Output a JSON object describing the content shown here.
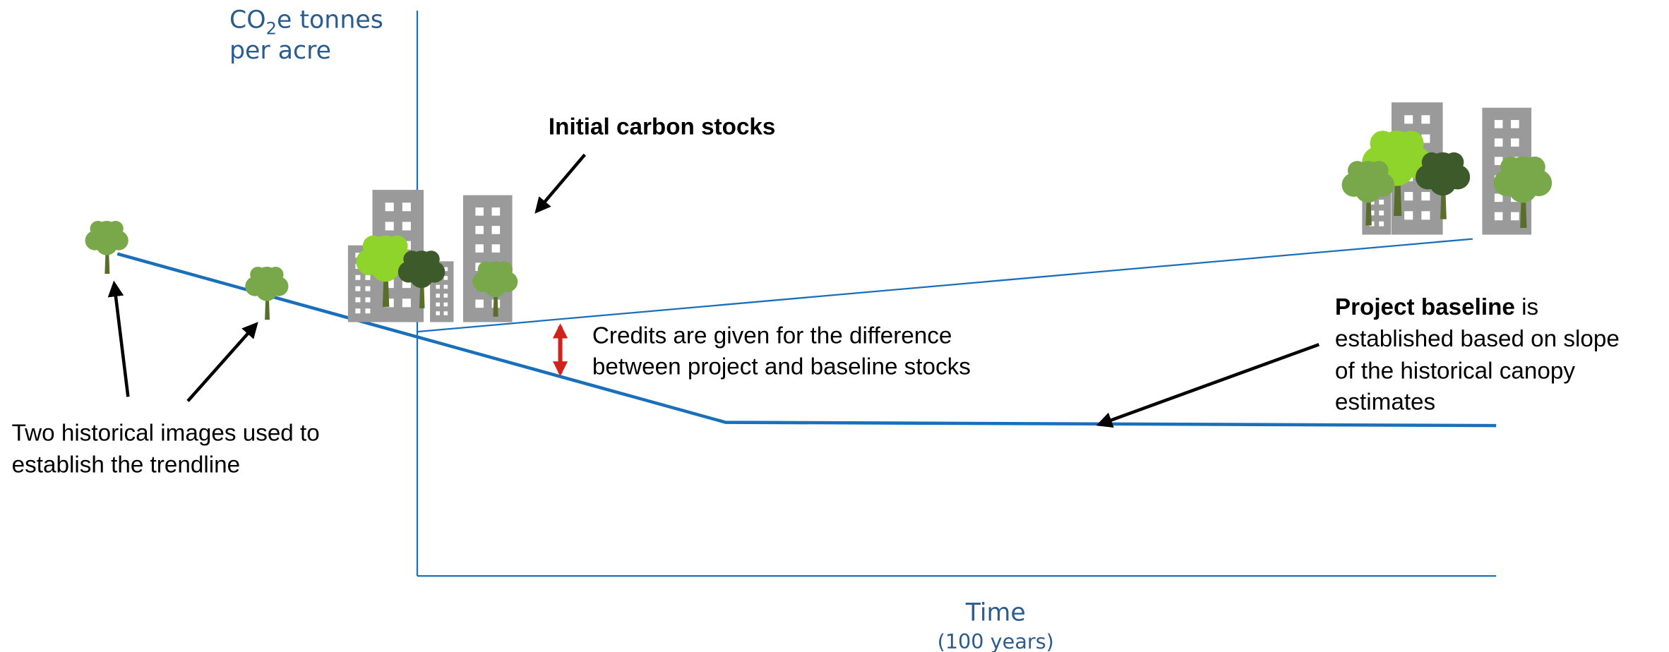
{
  "y_axis_label": {
    "line1": {
      "main": "CO",
      "subscript": "2",
      "rest": "e tonnes"
    },
    "line2": "per acre"
  },
  "x_axis_label": {
    "title": "Time",
    "subtitle": "(100 years)"
  },
  "annotations": {
    "initial_stocks": "Initial carbon stocks",
    "credits": [
      "Credits are given for the difference",
      "between project and baseline stocks"
    ],
    "project_baseline": {
      "bold": "Project baseline",
      "rest": " is",
      "lines": [
        "established based on slope",
        "of the historical canopy",
        "estimates"
      ]
    },
    "historical_images": [
      "Two historical images used to",
      "establish the trendline"
    ]
  }
}
